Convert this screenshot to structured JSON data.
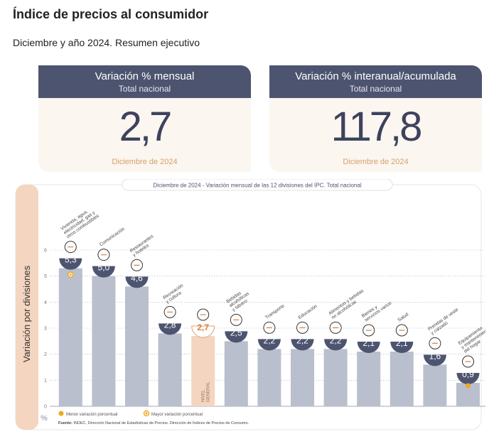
{
  "header": {
    "title": "Índice de precios al consumidor",
    "subtitle": "Diciembre y año 2024. Resumen ejecutivo"
  },
  "cards": [
    {
      "title": "Variación % mensual",
      "scope": "Total nacional",
      "value": "2,7",
      "date": "Diciembre de 2024"
    },
    {
      "title": "Variación % interanual/acumulada",
      "scope": "Total nacional",
      "value": "117,8",
      "date": "Diciembre de 2024"
    }
  ],
  "chart_data": {
    "type": "bar",
    "title_prefix": "Diciembre de 2024",
    "title": "Variación mensual de las 12 divisiones del IPC. Total nacional",
    "ylabel": "Variación por divisiones",
    "yunit": "%",
    "ylim": [
      0,
      6
    ],
    "yticks": [
      0,
      1,
      2,
      3,
      4,
      5,
      6
    ],
    "categories": [
      "Vivienda, agua, electricidad, gas y otros combustibles",
      "Comunicación",
      "Restaurantes y hoteles",
      "Recreación y cultura",
      "Nivel general",
      "Bebidas alcohólicas y tabaco",
      "Transporte",
      "Educación",
      "Alimentos y bebidas no alcohólicas",
      "Bienes y servicios varios",
      "Salud",
      "Prendas de vestir y calzado",
      "Equipamiento y mantenimiento del hogar"
    ],
    "values": [
      5.3,
      5.0,
      4.6,
      2.8,
      2.7,
      2.5,
      2.2,
      2.2,
      2.2,
      2.1,
      2.1,
      1.6,
      0.9
    ],
    "value_labels": [
      "5,3",
      "5,0",
      "4,6",
      "2,8",
      "2,7",
      "2,5",
      "2,2",
      "2,2",
      "2,2",
      "2,1",
      "2,1",
      "1,6",
      "0,9"
    ],
    "category_label_lines": [
      [
        "Vivienda, agua,",
        "electricidad, gas y",
        "otros combustibles"
      ],
      [
        "Comunicación"
      ],
      [
        "Restaurantes",
        "y hoteles"
      ],
      [
        "Recreación",
        "y cultura"
      ],
      [],
      [
        "Bebidas",
        "alcohólicas",
        "y tabaco"
      ],
      [
        "Transporte"
      ],
      [
        "Educación"
      ],
      [
        "Alimentos y bebidas",
        "no alcohólicas"
      ],
      [
        "Bienes y",
        "servicios varios"
      ],
      [
        "Salud"
      ],
      [
        "Prendas de vestir",
        "y calzado"
      ],
      [
        "Equipamiento",
        "y mantenimiento",
        "del hogar"
      ]
    ],
    "icons": [
      "lightbulb-icon",
      "phone-icon",
      "utensils-icon",
      "umbrella-icon",
      "basket-icon",
      "bottle-icon",
      "bus-icon",
      "book-icon",
      "food-icon",
      "scissors-icon",
      "medical-cross-icon",
      "shirt-icon",
      "home-appliance-icon"
    ],
    "general_index": 4,
    "general_label": [
      "NIVEL",
      "GENERAL"
    ],
    "max_index": 0,
    "min_index": 12,
    "legend": {
      "min": "Menor variación porcentual",
      "max": "Mayor variación porcentual"
    },
    "source_label": "Fuente:",
    "source": "INDEC, Dirección Nacional de Estadísticas de Precios. Dirección de Índices de Precios de Consumo.",
    "colors": {
      "bar": "#b9bfcc",
      "general_bar": "#f4d5bf",
      "badge": "#4d5470",
      "badge_general": "#ffffff",
      "badge_general_text": "#d8803a",
      "side_panel": "#f4d5bf",
      "marker": "#f0a81c",
      "grid": "#a9b0c2"
    }
  }
}
